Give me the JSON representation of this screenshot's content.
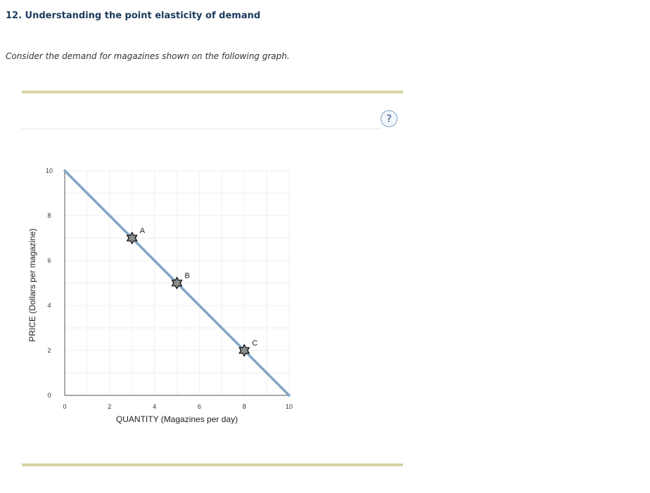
{
  "question": {
    "title": "12. Understanding the point elasticity of demand",
    "prompt": "Consider the demand for magazines shown on the following graph."
  },
  "help": {
    "label": "?",
    "icon": "question-mark-icon"
  },
  "chart_data": {
    "type": "line",
    "xlabel": "QUANTITY (Magazines per day)",
    "ylabel": "PRICE (Dollars per magazine)",
    "xlim": [
      0,
      10
    ],
    "ylim": [
      0,
      10
    ],
    "x_ticks": [
      0,
      2,
      4,
      6,
      8,
      10
    ],
    "y_ticks": [
      0,
      2,
      4,
      6,
      8,
      10
    ],
    "grid": true,
    "series": [
      {
        "x": [
          0,
          10
        ],
        "y": [
          10,
          0
        ],
        "color": "#7ea6c9"
      }
    ],
    "points": [
      {
        "label": "A",
        "x": 3,
        "y": 7
      },
      {
        "label": "B",
        "x": 5,
        "y": 5
      },
      {
        "label": "C",
        "x": 8,
        "y": 2
      }
    ]
  }
}
